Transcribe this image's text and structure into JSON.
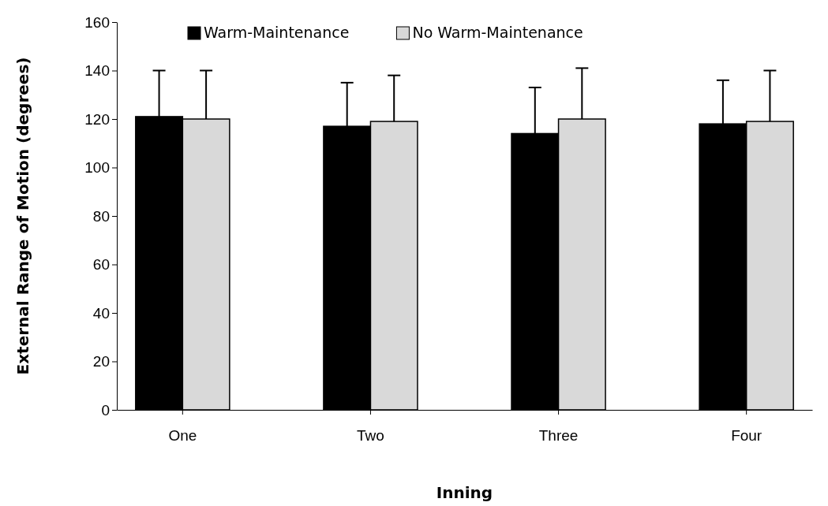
{
  "chart_data": {
    "type": "bar",
    "xlabel": "Inning",
    "ylabel": "External Range of Motion (degrees)",
    "categories": [
      "One",
      "Two",
      "Three",
      "Four"
    ],
    "series": [
      {
        "name": "Warm-Maintenance",
        "color": "#000000",
        "values": [
          121,
          117,
          114,
          118
        ],
        "errors": [
          19,
          18,
          19,
          18
        ]
      },
      {
        "name": "No Warm-Maintenance",
        "color": "#d9d9d9",
        "values": [
          120,
          119,
          120,
          119
        ],
        "errors": [
          20,
          19,
          21,
          21
        ]
      }
    ],
    "ylim": [
      0,
      160
    ],
    "yticks": [
      0,
      20,
      40,
      60,
      80,
      100,
      120,
      140,
      160
    ],
    "legend": "top",
    "grid": false
  }
}
